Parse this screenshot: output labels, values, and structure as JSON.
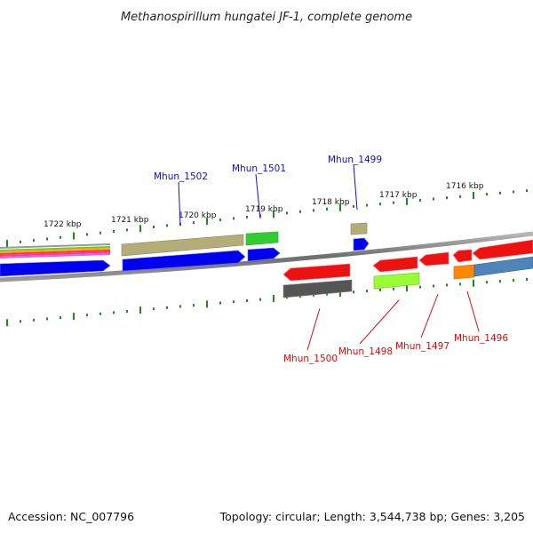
{
  "title": "Methanospirillum hungatei JF-1, complete genome",
  "footer": {
    "accession": "Accession: NC_007796",
    "summary": "Topology: circular; Length: 3,544,738 bp; Genes: 3,205"
  },
  "ticks": [
    "1722 kbp",
    "1721 kbp",
    "1720 kbp",
    "1719 kbp",
    "1718 kbp",
    "1717 kbp",
    "1716 kbp"
  ],
  "genes_forward": [
    {
      "label": "Mhun_1502",
      "color": "#0000ee"
    },
    {
      "label": "Mhun_1501",
      "color": "#0000ee"
    },
    {
      "label": "Mhun_1499",
      "color": "#0000ee"
    }
  ],
  "genes_reverse": [
    {
      "label": "Mhun_1500",
      "color": "#dd1111"
    },
    {
      "label": "Mhun_1498",
      "color": "#dd1111"
    },
    {
      "label": "Mhun_1497",
      "color": "#dd1111"
    },
    {
      "label": "Mhun_1496",
      "color": "#dd1111"
    }
  ],
  "colors": {
    "backbone": "#808080",
    "tick": "#1e8a1e",
    "cds_forward": "#0000ee",
    "cds_reverse": "#ee1111",
    "gene_olive": "#b5ad78",
    "gene_green": "#33cc33",
    "gene_dark": "#555555",
    "gene_lime": "#99ff33",
    "gene_orange": "#ff8800",
    "gene_steel": "#4f84b8"
  }
}
